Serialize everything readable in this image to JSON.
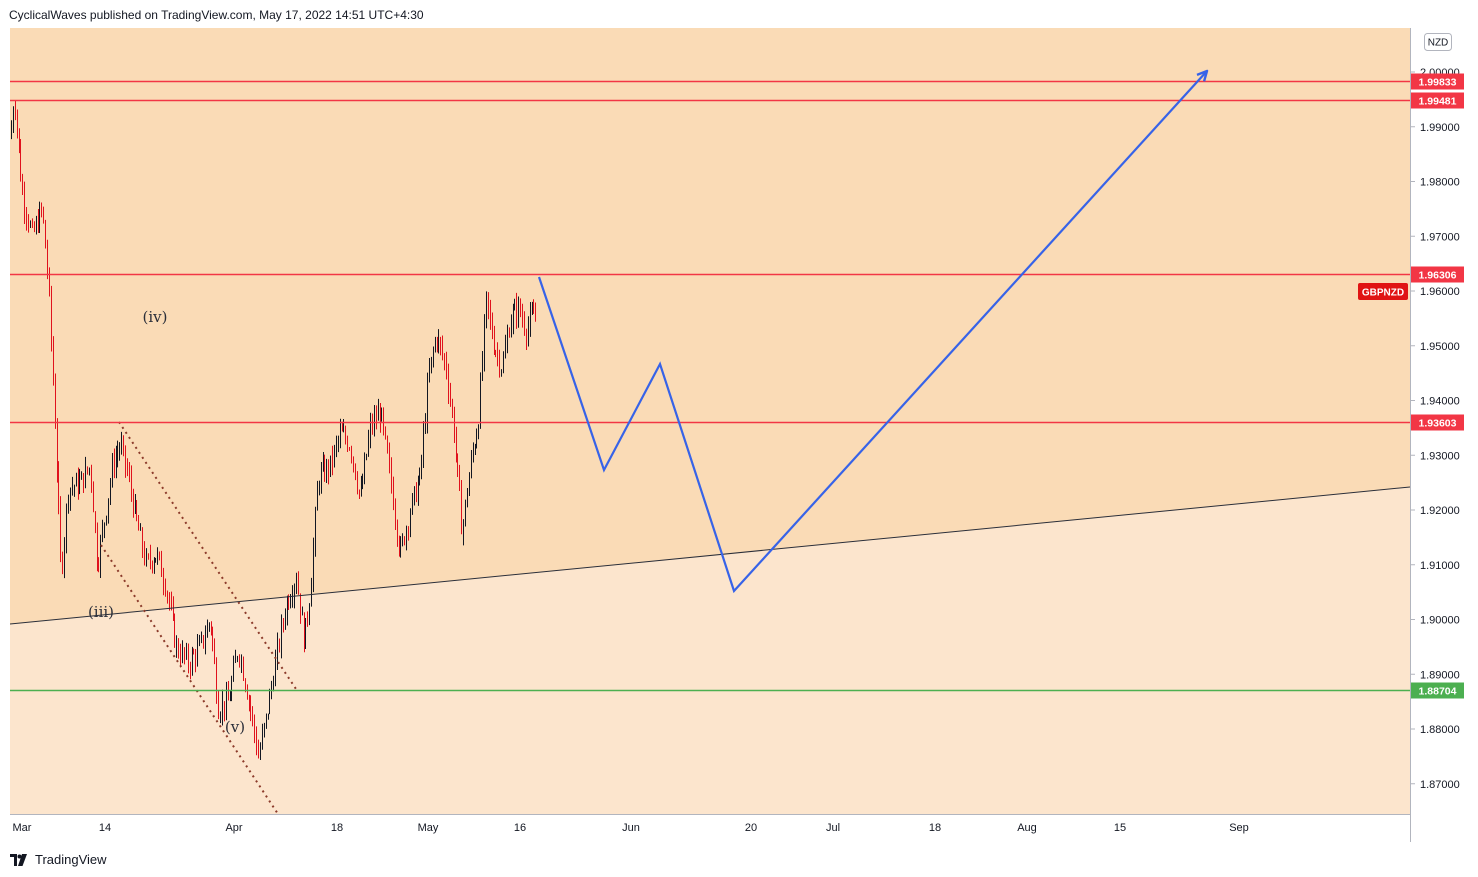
{
  "header": {
    "text": "CyclicalWaves published on TradingView.com, May 17, 2022 14:51 UTC+4:30"
  },
  "footer": {
    "brand_name": "TradingView",
    "logo_icon": "tradingview-logo-icon"
  },
  "chart_data": {
    "type": "candlestick",
    "symbol_tag": "GBPNZD",
    "currency_label": "NZD",
    "y_axis": {
      "ticks": [
        "2.00000",
        "1.99000",
        "1.98000",
        "1.97000",
        "1.96000",
        "1.95000",
        "1.94000",
        "1.93000",
        "1.92000",
        "1.91000",
        "1.90000",
        "1.89000",
        "1.88000",
        "1.87000"
      ]
    },
    "x_axis": {
      "labels": [
        "Mar",
        "14",
        "Apr",
        "18",
        "May",
        "16",
        "Jun",
        "20",
        "Jul",
        "18",
        "Aug",
        "15",
        "Sep"
      ]
    },
    "price_levels": [
      {
        "value": 1.99833,
        "label": "1.99833",
        "color": "#f23645"
      },
      {
        "value": 1.99481,
        "label": "1.99481",
        "color": "#f23645"
      },
      {
        "value": 1.96306,
        "label": "1.96306",
        "color": "#f23645"
      },
      {
        "value": 1.93603,
        "label": "1.93603",
        "color": "#f23645"
      },
      {
        "value": 1.88704,
        "label": "1.88704",
        "color": "#4caf50"
      }
    ],
    "wave_labels": [
      "(iv)",
      "(iii)",
      "(v)"
    ],
    "colors": {
      "zone_upper": "#fadbb6",
      "zone_lower": "#fce5cd",
      "candle_up": "#131722",
      "candle_down": "#e0121d",
      "projection": "#3763e8"
    }
  }
}
